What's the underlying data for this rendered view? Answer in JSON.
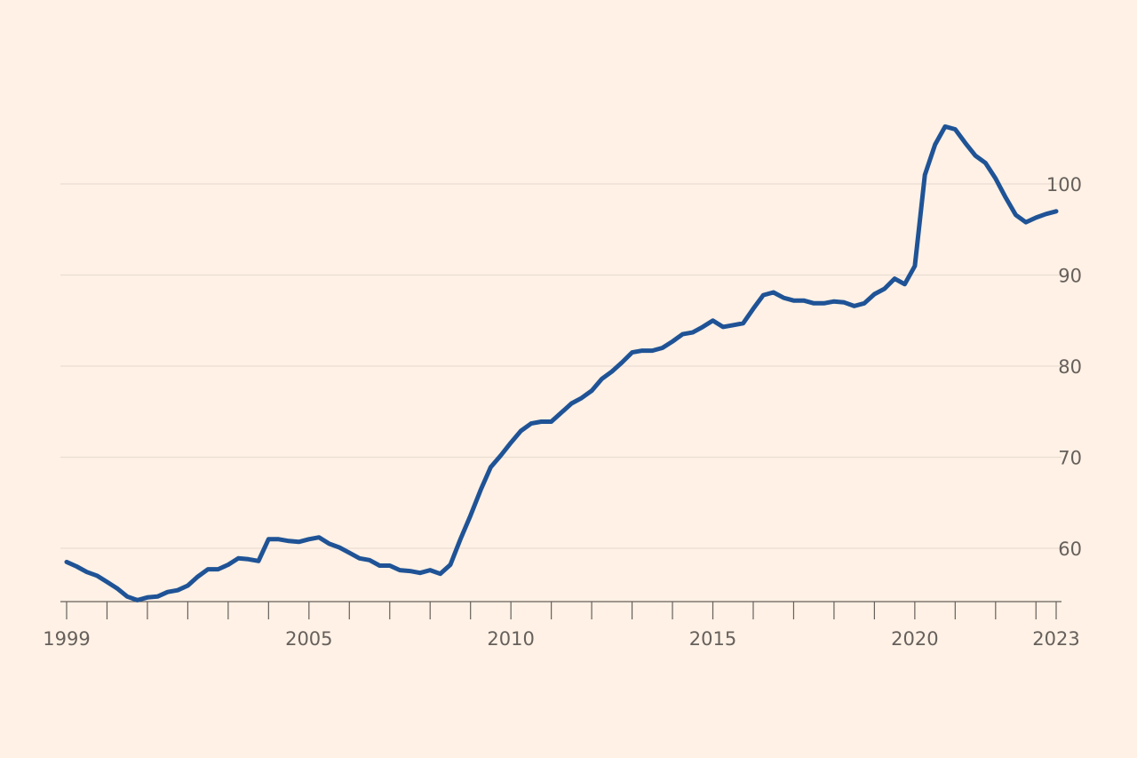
{
  "chart_data": {
    "type": "line",
    "title": "",
    "xlabel": "",
    "ylabel": "",
    "xlim": [
      1999,
      2023.5
    ],
    "ylim": [
      54,
      107
    ],
    "x_ticks": [
      {
        "value": 1999,
        "label": "1999"
      },
      {
        "value": 2005,
        "label": "2005"
      },
      {
        "value": 2010,
        "label": "2010"
      },
      {
        "value": 2015,
        "label": "2015"
      },
      {
        "value": 2020,
        "label": "2020"
      },
      {
        "value": 2023.5,
        "label": "2023"
      }
    ],
    "y_ticks": [
      {
        "value": 60,
        "label": "60"
      },
      {
        "value": 70,
        "label": "70"
      },
      {
        "value": 80,
        "label": "80"
      },
      {
        "value": 90,
        "label": "90"
      },
      {
        "value": 100,
        "label": "100"
      }
    ],
    "y_axis_side": "right",
    "grid": "horizontal",
    "color": "#1F5396",
    "series": [
      {
        "x": [
          1999.0,
          1999.25,
          1999.5,
          1999.75,
          2000.0,
          2000.25,
          2000.5,
          2000.75,
          2001.0,
          2001.25,
          2001.5,
          2001.75,
          2002.0,
          2002.25,
          2002.5,
          2002.75,
          2003.0,
          2003.25,
          2003.5,
          2003.75,
          2004.0,
          2004.25,
          2004.5,
          2004.75,
          2005.0,
          2005.25,
          2005.5,
          2005.75,
          2006.0,
          2006.25,
          2006.5,
          2006.75,
          2007.0,
          2007.25,
          2007.5,
          2007.75,
          2008.0,
          2008.25,
          2008.5,
          2008.75,
          2009.0,
          2009.25,
          2009.5,
          2009.75,
          2010.0,
          2010.25,
          2010.5,
          2010.75,
          2011.0,
          2011.25,
          2011.5,
          2011.75,
          2012.0,
          2012.25,
          2012.5,
          2012.75,
          2013.0,
          2013.25,
          2013.5,
          2013.75,
          2014.0,
          2014.25,
          2014.5,
          2014.75,
          2015.0,
          2015.25,
          2015.5,
          2015.75,
          2016.0,
          2016.25,
          2016.5,
          2016.75,
          2017.0,
          2017.25,
          2017.5,
          2017.75,
          2018.0,
          2018.25,
          2018.5,
          2018.75,
          2019.0,
          2019.25,
          2019.5,
          2019.75,
          2020.0,
          2020.25,
          2020.5,
          2020.75,
          2021.0,
          2021.25,
          2021.5,
          2021.75,
          2022.0,
          2022.25,
          2022.5,
          2022.75,
          2023.0,
          2023.25,
          2023.5
        ],
        "y": [
          58.5,
          58.0,
          57.4,
          57.0,
          56.3,
          55.6,
          54.7,
          54.3,
          54.6,
          54.7,
          55.2,
          55.4,
          55.9,
          56.9,
          57.7,
          57.7,
          58.2,
          58.9,
          58.8,
          58.6,
          61.0,
          61.0,
          60.8,
          60.7,
          61.0,
          61.2,
          60.5,
          60.1,
          59.5,
          58.9,
          58.7,
          58.1,
          58.1,
          57.6,
          57.5,
          57.3,
          57.6,
          57.2,
          58.2,
          61.0,
          63.6,
          66.4,
          68.9,
          70.2,
          71.6,
          72.9,
          73.7,
          73.9,
          73.9,
          74.9,
          75.9,
          76.5,
          77.3,
          78.6,
          79.4,
          80.4,
          81.5,
          81.7,
          81.7,
          82.0,
          82.7,
          83.5,
          83.7,
          84.3,
          85.0,
          84.3,
          84.5,
          84.7,
          86.3,
          87.8,
          88.1,
          87.5,
          87.2,
          87.2,
          86.9,
          86.9,
          87.1,
          87.0,
          86.6,
          86.9,
          87.9,
          88.5,
          89.6,
          89.0,
          91.0,
          101.0,
          104.3,
          106.3,
          106.0,
          104.5,
          103.1,
          102.3,
          100.6,
          98.5,
          96.6,
          95.8,
          96.3,
          96.7,
          97.0
        ]
      }
    ]
  }
}
